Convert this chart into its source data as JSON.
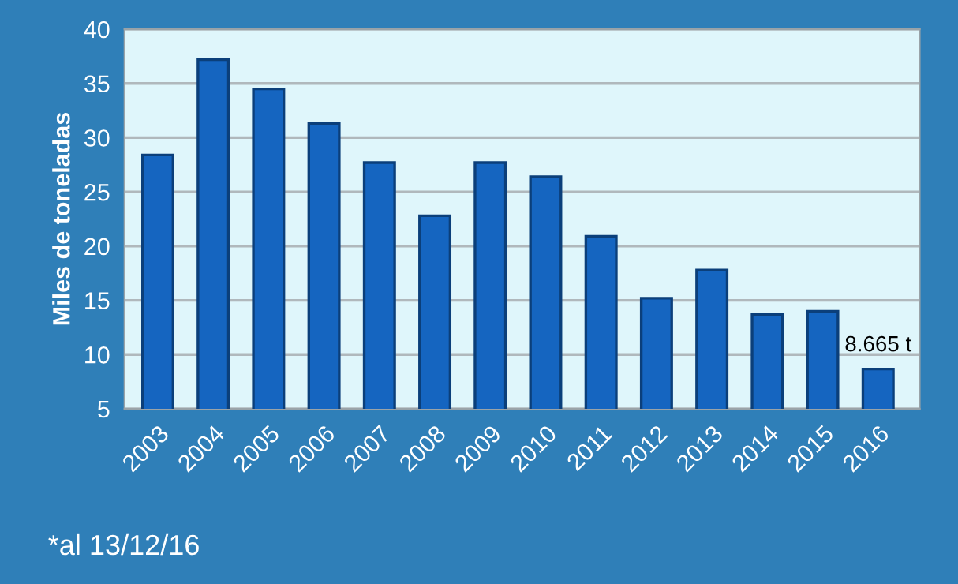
{
  "chart_data": {
    "type": "bar",
    "ylabel": "Miles de toneladas",
    "categories": [
      "2003",
      "2004",
      "2005",
      "2006",
      "2007",
      "2008",
      "2009",
      "2010",
      "2011",
      "2012",
      "2013",
      "2014",
      "2015",
      "2016"
    ],
    "values": [
      28.4,
      37.2,
      34.5,
      31.3,
      27.7,
      22.8,
      27.7,
      26.4,
      20.9,
      15.2,
      17.8,
      13.7,
      14.0,
      8.665
    ],
    "color": "#1565c0",
    "value_labels": [
      null,
      null,
      null,
      null,
      null,
      null,
      null,
      null,
      null,
      null,
      null,
      null,
      null,
      "8.665 t"
    ],
    "ylim": [
      5,
      40
    ],
    "yticks": [
      5,
      10,
      15,
      20,
      25,
      30,
      35,
      40
    ],
    "grid": "y",
    "legend": false,
    "annotations": [
      "*al 13/12/16"
    ]
  }
}
